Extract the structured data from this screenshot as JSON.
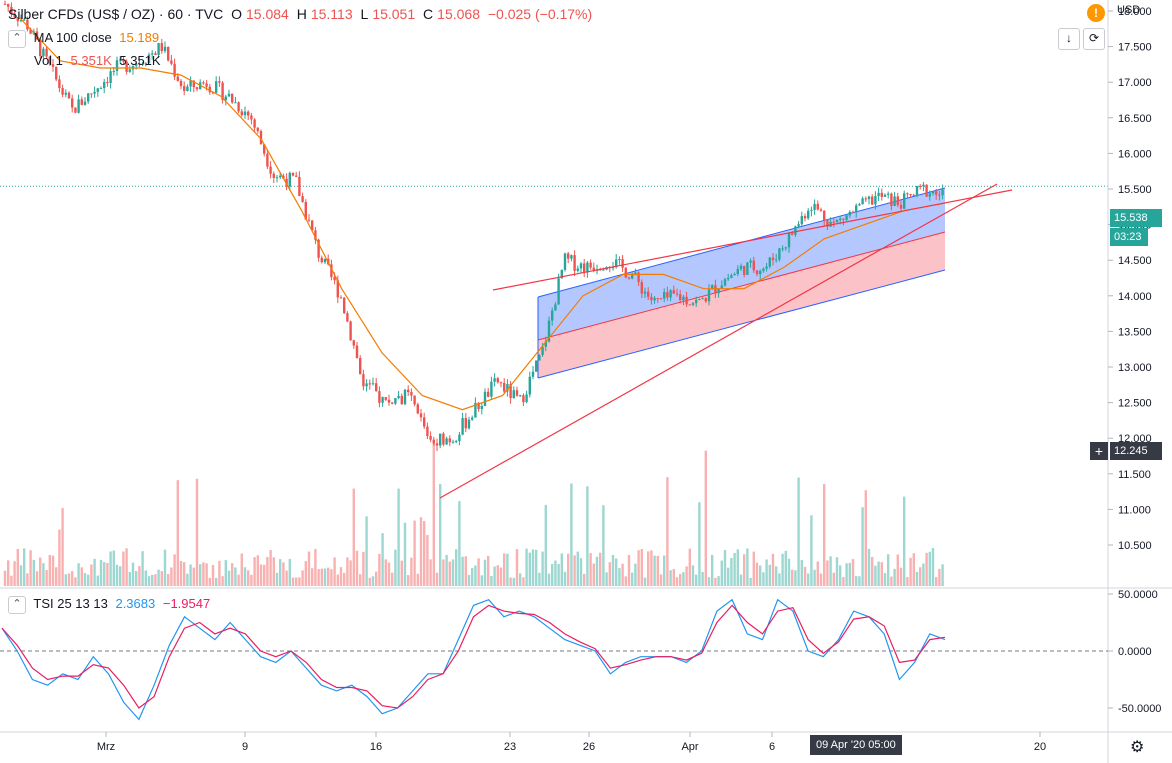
{
  "header": {
    "symbol": "Silber CFDs (US$ / OZ) · 60 · TVC",
    "open_label": "O",
    "open": "15.084",
    "high_label": "H",
    "high": "15.113",
    "low_label": "L",
    "low": "15.051",
    "close_label": "C",
    "close": "15.068",
    "change": "−0.025 (−0.17%)"
  },
  "ma_legend": {
    "label": "MA 100 close",
    "value": "15.189"
  },
  "vol_legend": {
    "label": "Vol 1",
    "value1": "5.351K",
    "value2": "5.351K"
  },
  "tsi_legend": {
    "label": "TSI 25 13 13",
    "value1": "2.3683",
    "value2": "−1.9547"
  },
  "currency": "USD",
  "alert_icon": "exclamation-icon",
  "buttons": {
    "down_icon": "arrow-down-icon",
    "reset_icon": "reset-icon",
    "settings_icon": "gear-icon"
  },
  "price_tags": {
    "last": "15.538",
    "countdown": "03:23",
    "crosshair": "12.245"
  },
  "time_tag": "09 Apr '20   05:00",
  "colors": {
    "up": "#26a69a",
    "down": "#ef5350",
    "ma": "#f57c00",
    "channel_blue": "#2962ff",
    "channel_red": "#f23645",
    "tsi_line": "#2196f3",
    "tsi_signal": "#e91e63"
  },
  "chart_data": [
    {
      "type": "candlestick",
      "title": "Silber CFDs (US$ / OZ), 60, TVC",
      "y_ticks": [
        "18.000",
        "17.500",
        "17.000",
        "16.500",
        "16.000",
        "15.500",
        "15.000",
        "14.500",
        "14.000",
        "13.500",
        "13.000",
        "12.500",
        "12.000",
        "11.500",
        "11.000",
        "10.500"
      ],
      "x_ticks": [
        "Mrz",
        "9",
        "16",
        "23",
        "26",
        "Apr",
        "6",
        "20"
      ],
      "ylim": [
        10.3,
        18.3
      ],
      "price_path": [
        [
          "Feb-24",
          18.1
        ],
        [
          "Feb-26",
          17.8
        ],
        [
          "Feb-28",
          17.2
        ],
        [
          "Mrz-1",
          16.6
        ],
        [
          "Mrz-3",
          16.9
        ],
        [
          "Mrz-4",
          17.2
        ],
        [
          "Mrz-6",
          17.3
        ],
        [
          "Mrz-8",
          17.5
        ],
        [
          "Mrz-9",
          16.9
        ],
        [
          "Mrz-10",
          17.0
        ],
        [
          "Mrz-11",
          16.8
        ],
        [
          "Mrz-12",
          16.5
        ],
        [
          "Mrz-13",
          15.7
        ],
        [
          "Mrz-14",
          15.6
        ],
        [
          "Mrz-15",
          14.6
        ],
        [
          "Mrz-16",
          14.0
        ],
        [
          "Mrz-16b",
          12.8
        ],
        [
          "Mrz-17",
          12.5
        ],
        [
          "Mrz-18",
          12.6
        ],
        [
          "Mrz-19",
          12.0
        ],
        [
          "Mrz-20",
          12.0
        ],
        [
          "Mrz-21",
          12.4
        ],
        [
          "Mrz-22",
          12.8
        ],
        [
          "Mrz-23",
          12.5
        ],
        [
          "Mrz-24",
          13.2
        ],
        [
          "Mrz-25",
          14.5
        ],
        [
          "Mrz-26",
          14.4
        ],
        [
          "Mrz-27",
          14.5
        ],
        [
          "Mrz-29",
          14.3
        ],
        [
          "Mrz-30",
          13.9
        ],
        [
          "Mrz-31",
          14.0
        ],
        [
          "Apr-1",
          13.9
        ],
        [
          "Apr-2",
          14.2
        ],
        [
          "Apr-3",
          14.4
        ],
        [
          "Apr-5",
          14.4
        ],
        [
          "Apr-6",
          14.8
        ],
        [
          "Apr-7",
          15.3
        ],
        [
          "Apr-8",
          15.0
        ],
        [
          "Apr-9",
          15.2
        ],
        [
          "Apr-10",
          15.4
        ],
        [
          "Apr-12",
          15.3
        ],
        [
          "Apr-13",
          15.5
        ],
        [
          "Apr-14",
          15.4
        ]
      ],
      "ma_100_path": [
        17.9,
        17.3,
        17.2,
        17.2,
        17.1,
        16.8,
        16.2,
        15.2,
        14.1,
        13.2,
        12.6,
        12.4,
        12.6,
        13.3,
        14.0,
        14.3,
        14.3,
        14.1,
        14.1,
        14.4,
        14.8,
        15.0,
        15.2,
        15.3
      ],
      "horizontal_line": 15.538
    },
    {
      "type": "line",
      "title": "TSI 25 13 13",
      "y_ticks": [
        "50.0000",
        "0.0000",
        "-50.0000"
      ],
      "ylim": [
        -70,
        60
      ],
      "series": [
        {
          "name": "TSI",
          "values": [
            20,
            0,
            -25,
            -30,
            -20,
            -25,
            -5,
            -20,
            -45,
            -60,
            -30,
            5,
            30,
            20,
            10,
            25,
            10,
            -5,
            -10,
            0,
            -15,
            -30,
            -35,
            -30,
            -40,
            -55,
            -50,
            -35,
            -20,
            -20,
            10,
            40,
            45,
            30,
            35,
            30,
            20,
            10,
            5,
            0,
            -20,
            -10,
            -5,
            -5,
            -5,
            -10,
            0,
            35,
            45,
            15,
            10,
            45,
            35,
            0,
            -5,
            10,
            35,
            30,
            15,
            -25,
            -10,
            15,
            10
          ]
        },
        {
          "name": "Signal",
          "values": [
            20,
            5,
            -15,
            -25,
            -22,
            -22,
            -12,
            -15,
            -30,
            -50,
            -40,
            -5,
            20,
            25,
            15,
            20,
            15,
            0,
            -5,
            0,
            -10,
            -25,
            -32,
            -32,
            -35,
            -48,
            -50,
            -40,
            -25,
            -20,
            0,
            30,
            40,
            35,
            33,
            32,
            25,
            15,
            8,
            2,
            -15,
            -12,
            -8,
            -5,
            -5,
            -8,
            -2,
            25,
            40,
            25,
            15,
            35,
            38,
            10,
            -2,
            8,
            28,
            30,
            22,
            -10,
            -8,
            10,
            12
          ]
        }
      ]
    }
  ]
}
